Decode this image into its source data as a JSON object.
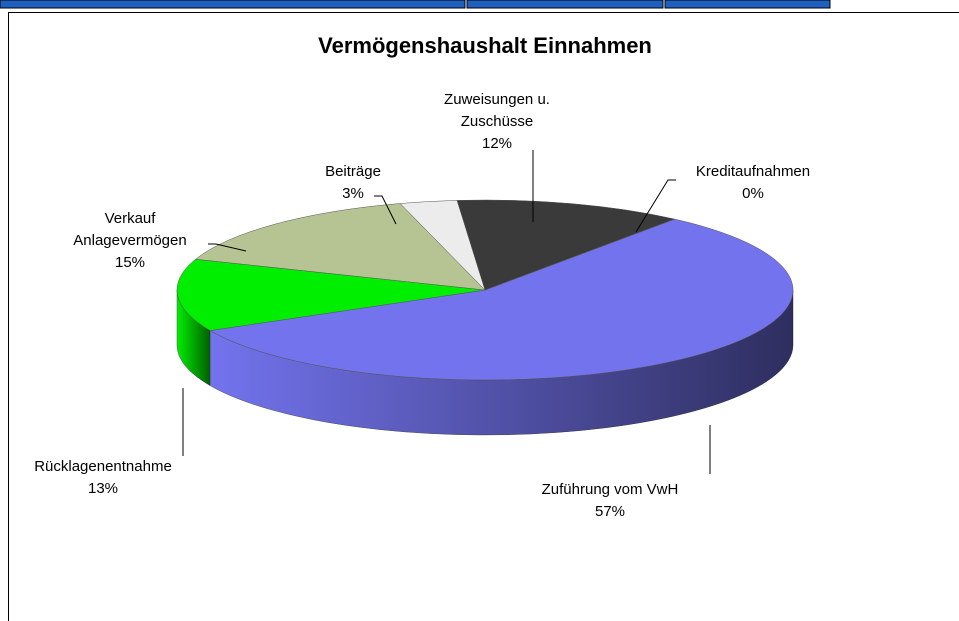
{
  "chart_data": {
    "type": "pie",
    "title": "Vermögenshaushalt Einnahmen",
    "categories": [
      "Zuführung vom VwH",
      "Rücklagenentnahme",
      "Verkauf\nAnlagevermögen",
      "Beiträge",
      "Zuweisungen u.\nZuschüsse",
      "Kreditaufnahmen"
    ],
    "values": [
      57,
      13,
      15,
      3,
      12,
      0
    ],
    "value_labels": [
      "57%",
      "13%",
      "15%",
      "3%",
      "12%",
      "0%"
    ],
    "colors": [
      "#7373ee",
      "#00ee00",
      "#b6c493",
      "#ececec",
      "#3a3a3a",
      "#2a2a2a"
    ]
  }
}
